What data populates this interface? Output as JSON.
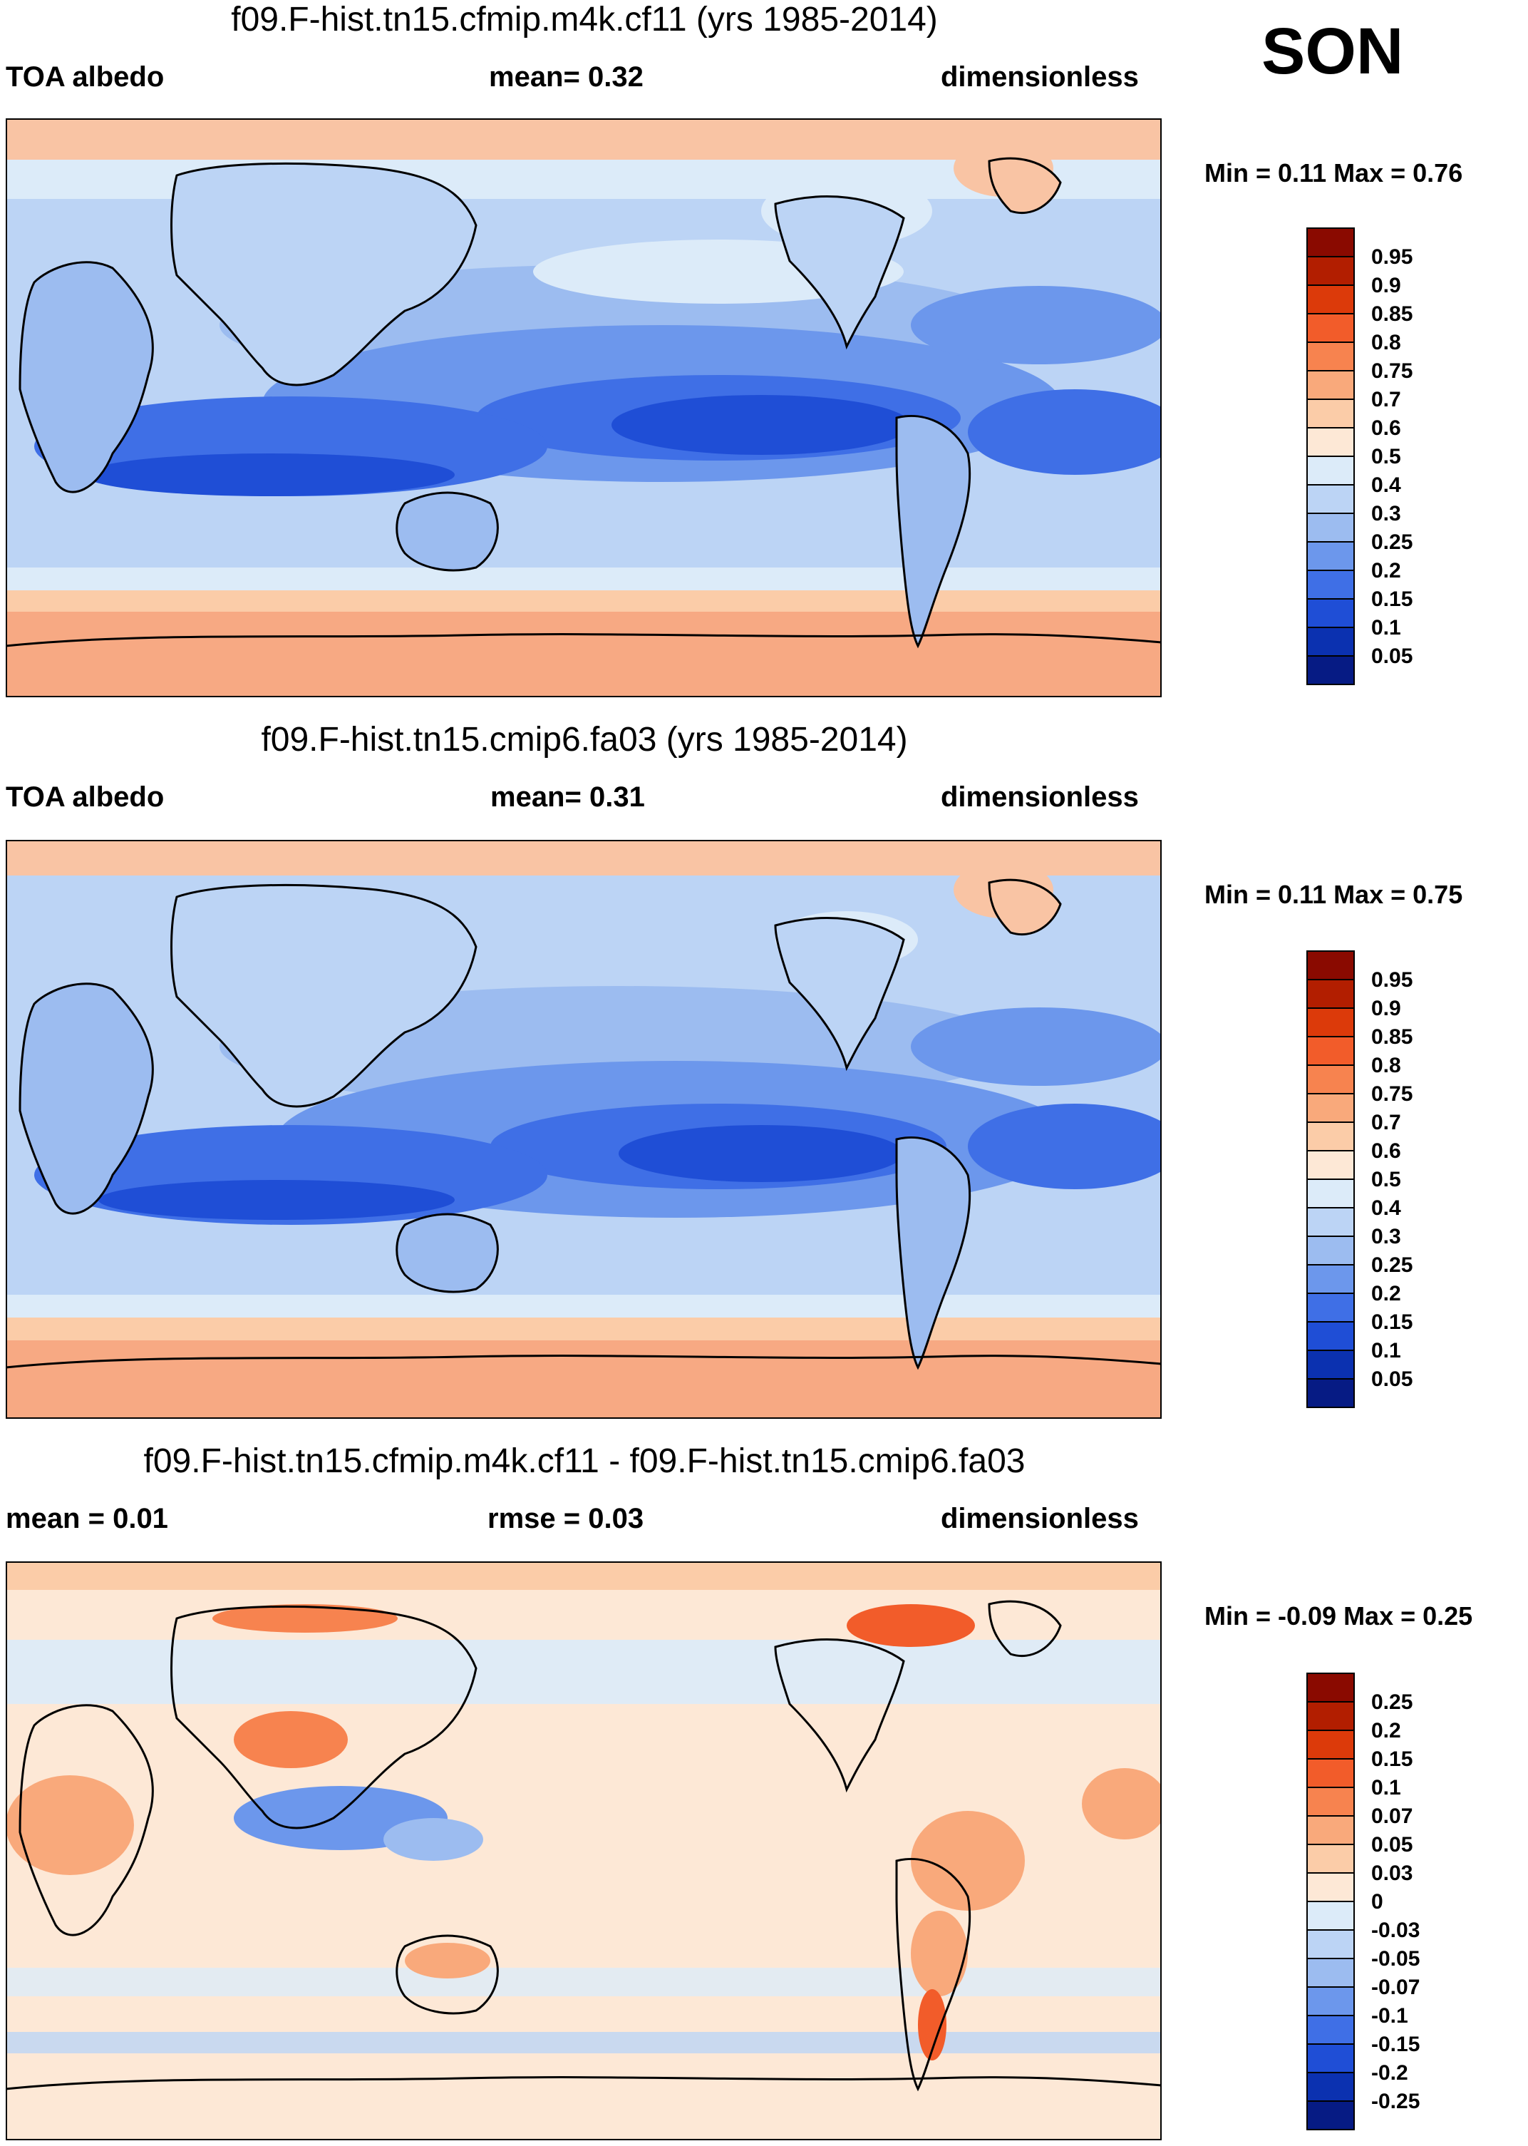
{
  "season": "SON",
  "panels": [
    {
      "title": "f09.F-hist.tn15.cfmip.m4k.cf11 (yrs 1985-2014)",
      "left_label": "TOA albedo",
      "center_label": "mean=  0.32",
      "right_label": "dimensionless",
      "minmax": "Min =  0.11 Max =  0.76",
      "colorbar": {
        "labels": [
          "0.95",
          "0.9",
          "0.85",
          "0.8",
          "0.75",
          "0.7",
          "0.6",
          "0.5",
          "0.4",
          "0.3",
          "0.25",
          "0.2",
          "0.15",
          "0.1",
          "0.05"
        ],
        "colors": [
          "#8a0a00",
          "#b21e00",
          "#dc3a0a",
          "#f25c2a",
          "#f7834f",
          "#f9a97b",
          "#fbcca8",
          "#fde8d6",
          "#dcebf9",
          "#bcd4f5",
          "#9cbcf0",
          "#6c97ec",
          "#3f6fe6",
          "#1f4ed6",
          "#0b31b0",
          "#061b84"
        ],
        "fill_levels": [
          "toa-ocean-deep",
          "toa-ocean",
          "toa-mid",
          "toa-land",
          "toa-polar"
        ]
      }
    },
    {
      "title": "f09.F-hist.tn15.cmip6.fa03 (yrs 1985-2014)",
      "left_label": "TOA albedo",
      "center_label": "mean=  0.31",
      "right_label": "dimensionless",
      "minmax": "Min =  0.11 Max =  0.75",
      "colorbar": {
        "labels": [
          "0.95",
          "0.9",
          "0.85",
          "0.8",
          "0.75",
          "0.7",
          "0.6",
          "0.5",
          "0.4",
          "0.3",
          "0.25",
          "0.2",
          "0.15",
          "0.1",
          "0.05"
        ],
        "colors": [
          "#8a0a00",
          "#b21e00",
          "#dc3a0a",
          "#f25c2a",
          "#f7834f",
          "#f9a97b",
          "#fbcca8",
          "#fde8d6",
          "#dcebf9",
          "#bcd4f5",
          "#9cbcf0",
          "#6c97ec",
          "#3f6fe6",
          "#1f4ed6",
          "#0b31b0",
          "#061b84"
        ],
        "fill_levels": [
          "toa-ocean-deep",
          "toa-ocean",
          "toa-mid",
          "toa-land",
          "toa-polar"
        ]
      }
    },
    {
      "title": "f09.F-hist.tn15.cfmip.m4k.cf11 - f09.F-hist.tn15.cmip6.fa03",
      "left_label": "mean =   0.01",
      "center_label": "rmse =   0.03",
      "right_label": "dimensionless",
      "minmax": "Min =  -0.09 Max =   0.25",
      "colorbar": {
        "labels": [
          "0.25",
          "0.2",
          "0.15",
          "0.1",
          "0.07",
          "0.05",
          "0.03",
          "0",
          "-0.03",
          "-0.05",
          "-0.07",
          "-0.1",
          "-0.15",
          "-0.2",
          "-0.25"
        ],
        "colors": [
          "#8a0a00",
          "#b21e00",
          "#dc3a0a",
          "#f25c2a",
          "#f7834f",
          "#f9a97b",
          "#fbcca8",
          "#fde8d6",
          "#dcebf9",
          "#bcd4f5",
          "#9cbcf0",
          "#6c97ec",
          "#3f6fe6",
          "#1f4ed6",
          "#0b31b0",
          "#061b84"
        ],
        "fill_levels": [
          "diff"
        ]
      }
    }
  ]
}
